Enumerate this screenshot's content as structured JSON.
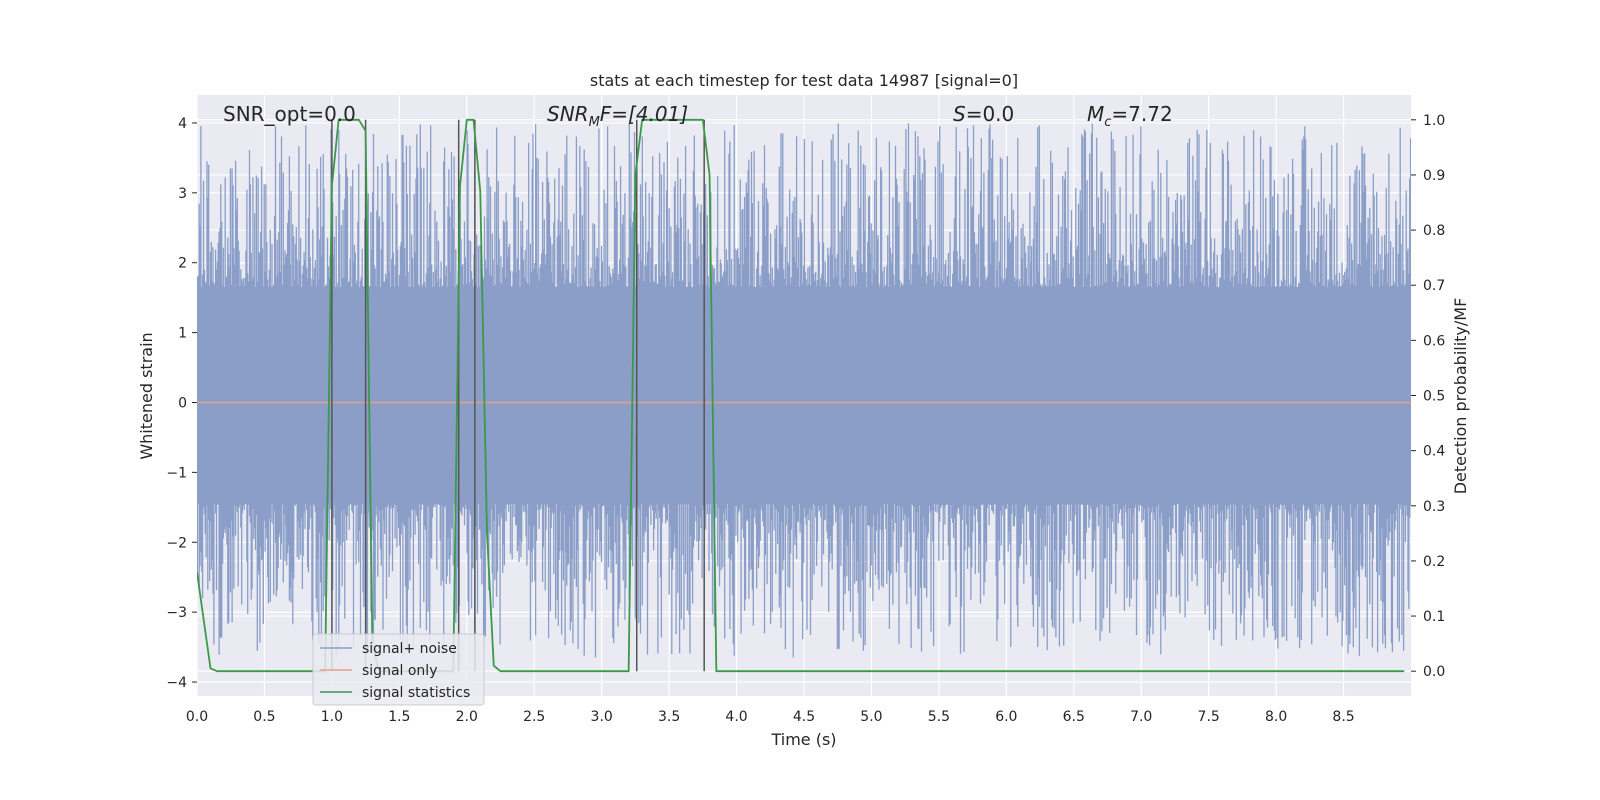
{
  "chart_data": {
    "type": "line",
    "title": "stats at each timestep for test data 14987 [signal=0]",
    "xlabel": "Time (s)",
    "ylabel": "Whitened strain",
    "y2label": "Detection probability/MF",
    "xlim": [
      0,
      9
    ],
    "ylim": [
      -4.2,
      4.4
    ],
    "y2lim": [
      -0.045,
      1.045
    ],
    "xticks": [
      "0.0",
      "0.5",
      "1.0",
      "1.5",
      "2.0",
      "2.5",
      "3.0",
      "3.5",
      "4.0",
      "4.5",
      "5.0",
      "5.5",
      "6.0",
      "6.5",
      "7.0",
      "7.5",
      "8.0",
      "8.5"
    ],
    "yticks": [
      "−4",
      "−3",
      "−2",
      "−1",
      "0",
      "1",
      "2",
      "3",
      "4"
    ],
    "y2ticks": [
      "0.0",
      "0.1",
      "0.2",
      "0.3",
      "0.4",
      "0.5",
      "0.6",
      "0.7",
      "0.8",
      "0.9",
      "1.0"
    ],
    "grid": true,
    "legend_position": "lower-left",
    "annotations": {
      "snr_opt": "SNR_opt=0.0",
      "snr_mf_base": "SNR",
      "snr_mf_sub": "M",
      "snr_mf_rest": "F=[4.01]",
      "s_var": "S",
      "s_rest": "=0.0",
      "mc_base": "M",
      "mc_sub": "c",
      "mc_rest": "=7.72"
    },
    "series": [
      {
        "name": "signal+ noise",
        "color": "#8a9ec8",
        "noise_envelope": {
          "core_low": -1.45,
          "core_high": 1.65,
          "peak_low": -3.65,
          "peak_high": 4.0
        }
      },
      {
        "name": "signal only",
        "color": "#e8a085",
        "x": [
          0,
          9
        ],
        "y": [
          0,
          0
        ]
      },
      {
        "name": "signal statistics",
        "color": "#3a9a4a",
        "x": [
          0,
          0.1,
          0.15,
          0.9,
          0.95,
          1.0,
          1.05,
          1.1,
          1.15,
          1.2,
          1.25,
          1.3,
          1.35,
          1.8,
          1.85,
          1.9,
          1.95,
          2.0,
          2.05,
          2.1,
          2.15,
          2.2,
          2.25,
          2.3,
          3.2,
          3.25,
          3.3,
          3.35,
          3.4,
          3.7,
          3.75,
          3.8,
          3.85,
          3.9,
          3.95,
          8.95
        ],
        "y": [
          0.18,
          0.005,
          0.0,
          0.0,
          0.0,
          0.88,
          1.0,
          1.0,
          1.0,
          1.0,
          0.98,
          0.05,
          0.0,
          0.0,
          0.0,
          0.0,
          0.88,
          1.0,
          1.0,
          0.87,
          0.25,
          0.01,
          0.0,
          0.0,
          0.0,
          0.9,
          1.0,
          1.0,
          1.0,
          1.0,
          1.0,
          0.9,
          0.0,
          0.0,
          0.0,
          0.0
        ]
      }
    ],
    "vertical_markers": [
      {
        "x": 1.0,
        "ymin": 0.0,
        "ymax": 1.0
      },
      {
        "x": 1.25,
        "ymin": 0.0,
        "ymax": 1.0
      },
      {
        "x": 1.94,
        "ymin": 0.0,
        "ymax": 1.0
      },
      {
        "x": 2.06,
        "ymin": 0.0,
        "ymax": 1.0
      },
      {
        "x": 3.26,
        "ymin": 0.0,
        "ymax": 1.0
      },
      {
        "x": 3.76,
        "ymin": 0.0,
        "ymax": 1.0
      }
    ]
  }
}
